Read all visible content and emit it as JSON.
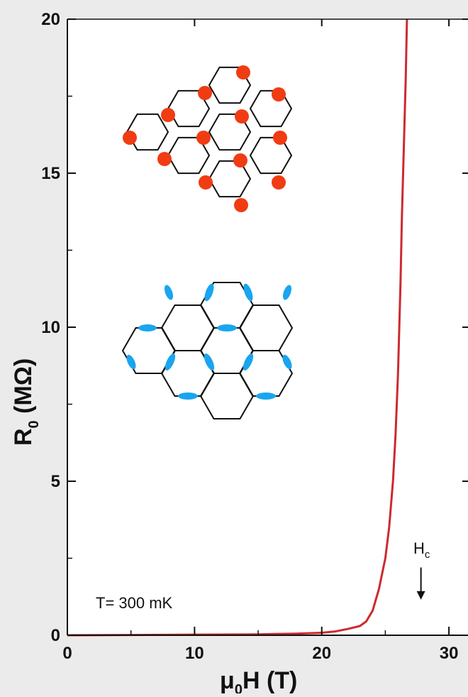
{
  "chart_data": {
    "type": "line",
    "xlabel": {
      "main": "μ",
      "sub": "0",
      "tail": "H (T)"
    },
    "ylabel": {
      "main": "R",
      "sub": "0",
      "tail": " (MΩ)"
    },
    "xlim": [
      0,
      31.5
    ],
    "ylim": [
      0,
      20
    ],
    "xticks": [
      0,
      10,
      20,
      30
    ],
    "xtick_labels": [
      "0",
      "10",
      "20",
      "30"
    ],
    "yticks": [
      0,
      5,
      10,
      15,
      20
    ],
    "ytick_labels": [
      "0",
      "5",
      "10",
      "15",
      "20"
    ],
    "grid": false,
    "series": [
      {
        "color": "#cc2a2f",
        "x": [
          0,
          5,
          10,
          15,
          18,
          20,
          21,
          22,
          23,
          23.5,
          24,
          24.5,
          25,
          25.3,
          25.6,
          25.8,
          26.0,
          26.1,
          26.2,
          26.3,
          26.4,
          26.5,
          26.6,
          26.65,
          26.7
        ],
        "y": [
          0,
          0.01,
          0.02,
          0.03,
          0.05,
          0.08,
          0.12,
          0.2,
          0.3,
          0.45,
          0.8,
          1.5,
          2.5,
          3.5,
          5.0,
          6.5,
          8.5,
          10.0,
          11.5,
          13.5,
          15.0,
          16.5,
          18.0,
          19.0,
          20.0
        ]
      }
    ],
    "annotations": {
      "temperature": "T= 300 mK",
      "hc": {
        "main": "H",
        "sub": "c",
        "x": 27.8,
        "arrow_from_y": 2.2,
        "arrow_to_y": 1.2
      }
    },
    "insets": {
      "top_lattice_dot_color": "#f03c12",
      "bottom_lattice_lobe_color": "#19a5ef"
    }
  }
}
